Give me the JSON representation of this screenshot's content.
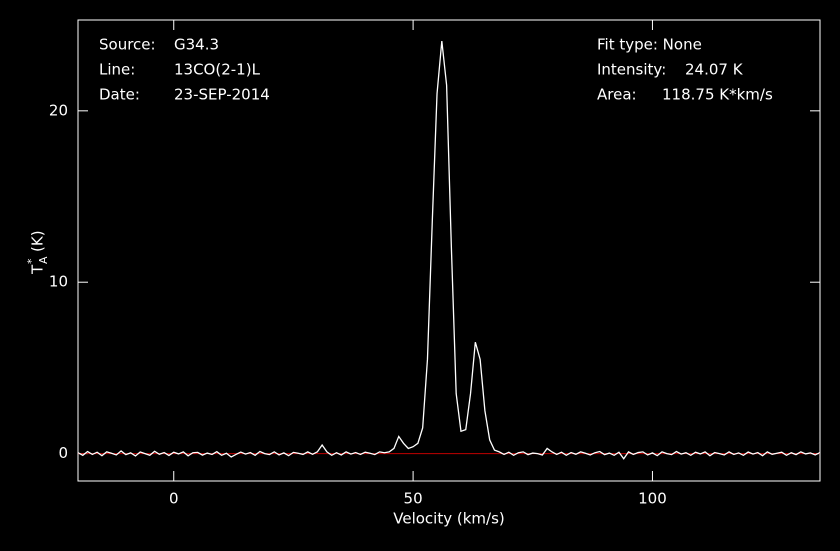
{
  "chart_data": {
    "type": "line",
    "xlabel": "Velocity (km/s)",
    "ylabel": {
      "main": "T",
      "sup": "*",
      "sub": "A",
      "unit": "(K)"
    },
    "annotations": {
      "source_label": "Source:",
      "source": "G34.3",
      "line_label": "Line:",
      "line": "13CO(2-1)L",
      "date_label": "Date:",
      "date": "23-SEP-2014",
      "fit": "Fit type: None",
      "intensity_label": "Intensity:",
      "intensity": "24.07 K",
      "area_label": "Area:",
      "area": "118.75 K*km/s"
    },
    "xlim": [
      -20,
      135
    ],
    "ylim": [
      -1.6,
      25.3
    ],
    "xticks": [
      0,
      50,
      100
    ],
    "yticks": [
      0,
      10,
      20
    ],
    "baseline": 0,
    "baseline_color": "#c00000",
    "x": [
      -20,
      -19,
      -18,
      -17,
      -16,
      -15,
      -14,
      -13,
      -12,
      -11,
      -10,
      -9,
      -8,
      -7,
      -6,
      -5,
      -4,
      -3,
      -2,
      -1,
      0,
      1,
      2,
      3,
      4,
      5,
      6,
      7,
      8,
      9,
      10,
      11,
      12,
      13,
      14,
      15,
      16,
      17,
      18,
      19,
      20,
      21,
      22,
      23,
      24,
      25,
      26,
      27,
      28,
      29,
      30,
      31,
      32,
      33,
      34,
      35,
      36,
      37,
      38,
      39,
      40,
      41,
      42,
      43,
      44,
      45,
      46,
      47,
      48,
      49,
      50,
      51,
      52,
      53,
      54,
      55,
      56,
      57,
      58,
      59,
      60,
      61,
      62,
      63,
      64,
      65,
      66,
      67,
      68,
      69,
      70,
      71,
      72,
      73,
      74,
      75,
      76,
      77,
      78,
      79,
      80,
      81,
      82,
      83,
      84,
      85,
      86,
      87,
      88,
      89,
      90,
      91,
      92,
      93,
      94,
      95,
      96,
      97,
      98,
      99,
      100,
      101,
      102,
      103,
      104,
      105,
      106,
      107,
      108,
      109,
      110,
      111,
      112,
      113,
      114,
      115,
      116,
      117,
      118,
      119,
      120,
      121,
      122,
      123,
      124,
      125,
      126,
      127,
      128,
      129,
      130,
      131,
      132,
      133,
      134,
      135
    ],
    "series": [
      {
        "color": "#ffffff",
        "values": [
          0.05,
          -0.1,
          0.12,
          -0.05,
          0.08,
          -0.12,
          0.1,
          0.02,
          -0.08,
          0.15,
          -0.06,
          0.04,
          -0.14,
          0.09,
          0.0,
          -0.1,
          0.13,
          -0.04,
          0.06,
          -0.11,
          0.08,
          -0.02,
          0.1,
          -0.13,
          0.05,
          0.07,
          -0.09,
          0.03,
          -0.05,
          0.11,
          -0.1,
          0.02,
          -0.2,
          -0.05,
          0.09,
          -0.03,
          0.06,
          -0.1,
          0.12,
          0.0,
          -0.06,
          0.1,
          -0.08,
          0.04,
          -0.12,
          0.07,
          0.02,
          -0.05,
          0.1,
          -0.04,
          0.1,
          0.5,
          0.1,
          -0.1,
          0.05,
          -0.08,
          0.1,
          -0.03,
          0.06,
          -0.05,
          0.08,
          0.02,
          -0.06,
          0.1,
          0.05,
          0.1,
          0.3,
          1.0,
          0.6,
          0.3,
          0.4,
          0.6,
          1.5,
          5.5,
          13.5,
          21.0,
          24.07,
          21.5,
          12.0,
          3.5,
          1.3,
          1.4,
          3.5,
          6.5,
          5.5,
          2.5,
          0.8,
          0.2,
          0.1,
          -0.05,
          0.08,
          -0.1,
          0.05,
          0.1,
          -0.06,
          0.03,
          0.0,
          -0.08,
          0.3,
          0.1,
          -0.05,
          0.08,
          -0.1,
          0.06,
          -0.04,
          0.1,
          0.02,
          -0.08,
          0.05,
          0.12,
          -0.06,
          0.03,
          -0.1,
          0.08,
          -0.3,
          0.1,
          -0.05,
          0.06,
          0.1,
          -0.08,
          0.04,
          -0.12,
          0.1,
          0.0,
          -0.06,
          0.12,
          -0.03,
          0.05,
          -0.1,
          0.08,
          -0.02,
          0.1,
          -0.12,
          0.06,
          0.0,
          -0.08,
          0.1,
          -0.05,
          0.04,
          -0.1,
          0.09,
          -0.03,
          0.06,
          -0.12,
          0.1,
          -0.04,
          0.02,
          0.08,
          -0.1,
          0.05,
          -0.06,
          0.1,
          -0.02,
          0.04,
          -0.08,
          0.06
        ]
      }
    ]
  }
}
